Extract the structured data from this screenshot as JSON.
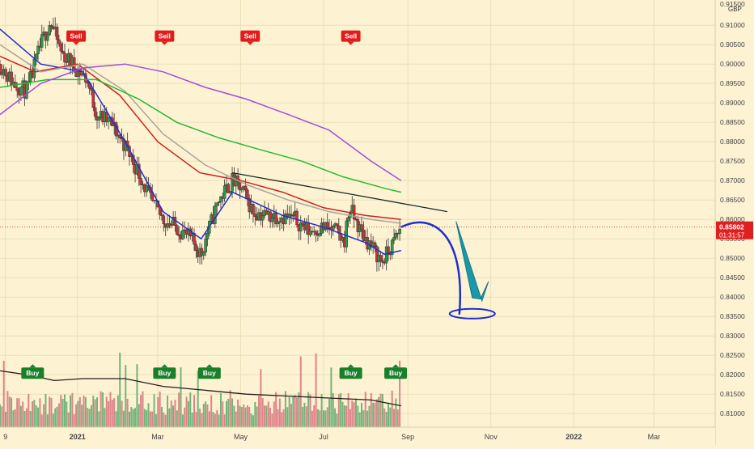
{
  "currency": "GBP",
  "price_tag": {
    "value": "0.85802",
    "countdown": "01:31:57"
  },
  "signals": {
    "sell": {
      "label": "Sell",
      "dates": [
        "2020-12-31",
        "2021-03-06",
        "2021-05-08",
        "2021-07-21"
      ]
    },
    "buy": {
      "label": "Buy",
      "dates": [
        "2020-11-29",
        "2021-03-06",
        "2021-04-08",
        "2021-07-21",
        "2021-08-23"
      ]
    }
  },
  "chart_data": {
    "type": "line",
    "title": "",
    "xlabel": "",
    "ylabel": "",
    "x_range": [
      "2020-11-05",
      "2022-04-15"
    ],
    "ylim": [
      0.8065,
      0.9165
    ],
    "grid": true,
    "legend": "none",
    "y_ticks": [
      "0.91000",
      "0.90500",
      "0.90000",
      "0.89500",
      "0.89000",
      "0.88500",
      "0.88000",
      "0.87500",
      "0.87000",
      "0.86500",
      "0.86000",
      "0.85500",
      "0.85000",
      "0.84500",
      "0.84000",
      "0.83500",
      "0.83000",
      "0.82500",
      "0.82000",
      "0.81500",
      "0.81000"
    ],
    "y_tick_top_partial": "0.91500",
    "x_ticks": [
      {
        "label": "9",
        "date": "2020-11-09"
      },
      {
        "label": "2021",
        "date": "2021-01-01"
      },
      {
        "label": "Mar",
        "date": "2021-03-01"
      },
      {
        "label": "May",
        "date": "2021-05-01"
      },
      {
        "label": "Jul",
        "date": "2021-07-01"
      },
      {
        "label": "Sep",
        "date": "2021-09-01"
      },
      {
        "label": "Nov",
        "date": "2021-11-01"
      },
      {
        "label": "2022",
        "date": "2022-01-01"
      },
      {
        "label": "Mar",
        "date": "2022-03-01"
      }
    ],
    "price_keypoints": [
      [
        "2020-11-05",
        0.9
      ],
      [
        "2020-11-15",
        0.895
      ],
      [
        "2020-11-25",
        0.893
      ],
      [
        "2020-12-05",
        0.905
      ],
      [
        "2020-12-12",
        0.911
      ],
      [
        "2020-12-20",
        0.903
      ],
      [
        "2020-12-31",
        0.899
      ],
      [
        "2021-01-08",
        0.896
      ],
      [
        "2021-01-15",
        0.887
      ],
      [
        "2021-01-25",
        0.885
      ],
      [
        "2021-02-05",
        0.879
      ],
      [
        "2021-02-15",
        0.872
      ],
      [
        "2021-02-25",
        0.864
      ],
      [
        "2021-03-05",
        0.86
      ],
      [
        "2021-03-15",
        0.858
      ],
      [
        "2021-03-25",
        0.855
      ],
      [
        "2021-04-02",
        0.851
      ],
      [
        "2021-04-06",
        0.856
      ],
      [
        "2021-04-15",
        0.865
      ],
      [
        "2021-04-25",
        0.87
      ],
      [
        "2021-05-03",
        0.867
      ],
      [
        "2021-05-10",
        0.862
      ],
      [
        "2021-05-20",
        0.861
      ],
      [
        "2021-05-30",
        0.861
      ],
      [
        "2021-06-10",
        0.86
      ],
      [
        "2021-06-20",
        0.857
      ],
      [
        "2021-06-30",
        0.858
      ],
      [
        "2021-07-10",
        0.857
      ],
      [
        "2021-07-16",
        0.854
      ],
      [
        "2021-07-20",
        0.863
      ],
      [
        "2021-07-28",
        0.857
      ],
      [
        "2021-08-05",
        0.853
      ],
      [
        "2021-08-13",
        0.849
      ],
      [
        "2021-08-20",
        0.853
      ],
      [
        "2021-08-27",
        0.858
      ]
    ],
    "series": [
      {
        "color": "#1f2fcc",
        "points": [
          [
            "2020-11-05",
            0.909
          ],
          [
            "2020-12-05",
            0.9
          ],
          [
            "2021-01-05",
            0.898
          ],
          [
            "2021-02-05",
            0.88
          ],
          [
            "2021-03-05",
            0.862
          ],
          [
            "2021-04-02",
            0.855
          ],
          [
            "2021-04-25",
            0.867
          ],
          [
            "2021-06-01",
            0.861
          ],
          [
            "2021-07-01",
            0.858
          ],
          [
            "2021-08-01",
            0.854
          ],
          [
            "2021-08-15",
            0.851
          ],
          [
            "2021-08-27",
            0.852
          ]
        ]
      },
      {
        "color": "#d02020",
        "points": [
          [
            "2020-11-05",
            0.902
          ],
          [
            "2020-12-01",
            0.898
          ],
          [
            "2021-01-01",
            0.9
          ],
          [
            "2021-02-01",
            0.892
          ],
          [
            "2021-03-01",
            0.88
          ],
          [
            "2021-04-01",
            0.872
          ],
          [
            "2021-05-01",
            0.87
          ],
          [
            "2021-06-01",
            0.867
          ],
          [
            "2021-07-01",
            0.863
          ],
          [
            "2021-08-01",
            0.861
          ],
          [
            "2021-08-27",
            0.86
          ]
        ]
      },
      {
        "color": "#a8a39a",
        "points": [
          [
            "2020-11-05",
            0.905
          ],
          [
            "2020-12-05",
            0.898
          ],
          [
            "2021-01-05",
            0.9
          ],
          [
            "2021-02-05",
            0.893
          ],
          [
            "2021-03-05",
            0.882
          ],
          [
            "2021-04-05",
            0.874
          ],
          [
            "2021-05-05",
            0.869
          ],
          [
            "2021-06-05",
            0.865
          ],
          [
            "2021-07-05",
            0.862
          ],
          [
            "2021-08-05",
            0.86
          ],
          [
            "2021-08-27",
            0.859
          ]
        ]
      },
      {
        "color": "#22bb33",
        "points": [
          [
            "2020-11-05",
            0.894
          ],
          [
            "2020-12-10",
            0.896
          ],
          [
            "2021-01-15",
            0.896
          ],
          [
            "2021-02-15",
            0.891
          ],
          [
            "2021-03-15",
            0.885
          ],
          [
            "2021-04-15",
            0.881
          ],
          [
            "2021-05-15",
            0.878
          ],
          [
            "2021-06-15",
            0.875
          ],
          [
            "2021-07-15",
            0.871
          ],
          [
            "2021-08-15",
            0.868
          ],
          [
            "2021-08-27",
            0.867
          ]
        ]
      },
      {
        "color": "#9a4fd9",
        "points": [
          [
            "2020-11-05",
            0.887
          ],
          [
            "2020-12-05",
            0.895
          ],
          [
            "2021-01-05",
            0.899
          ],
          [
            "2021-02-05",
            0.9
          ],
          [
            "2021-03-05",
            0.898
          ],
          [
            "2021-04-05",
            0.894
          ],
          [
            "2021-05-05",
            0.891
          ],
          [
            "2021-06-05",
            0.887
          ],
          [
            "2021-07-05",
            0.883
          ],
          [
            "2021-08-05",
            0.875
          ],
          [
            "2021-08-27",
            0.87
          ]
        ]
      }
    ],
    "trendline": {
      "color": "#1a2a2a",
      "from": [
        "2021-04-25",
        0.872
      ],
      "to": [
        "2021-09-30",
        0.862
      ]
    },
    "volume": {
      "avg_color": "#2a1a1a",
      "avg_points": [
        [
          "2020-11-05",
          0.821
        ],
        [
          "2020-11-25",
          0.82
        ],
        [
          "2020-12-15",
          0.8185
        ],
        [
          "2021-01-05",
          0.819
        ],
        [
          "2021-02-05",
          0.819
        ],
        [
          "2021-03-05",
          0.817
        ],
        [
          "2021-04-05",
          0.816
        ],
        [
          "2021-05-05",
          0.815
        ],
        [
          "2021-06-05",
          0.8145
        ],
        [
          "2021-07-05",
          0.814
        ],
        [
          "2021-08-05",
          0.8135
        ],
        [
          "2021-08-27",
          0.812
        ]
      ]
    }
  }
}
